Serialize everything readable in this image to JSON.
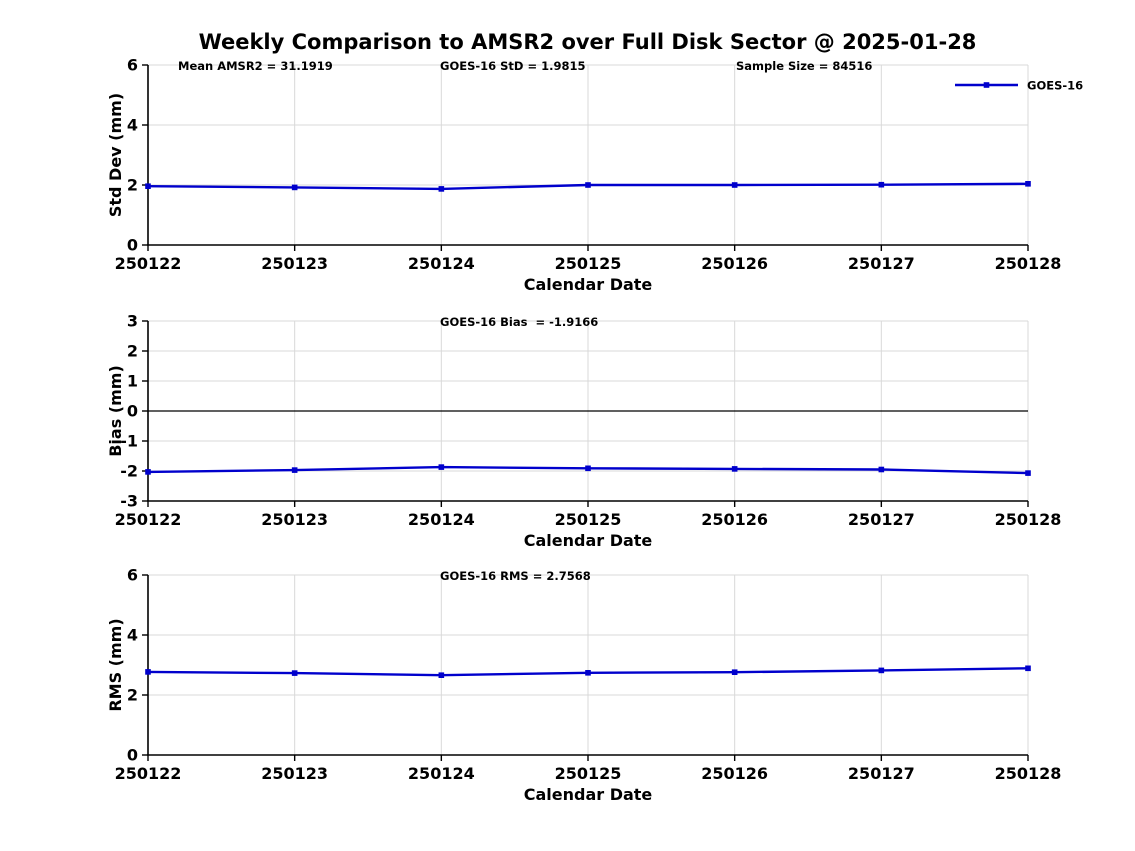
{
  "title": "Weekly Comparison to AMSR2 over Full Disk Sector @ 2025-01-28",
  "colors": {
    "series": "#0000CC",
    "grid": "#D9D9D9",
    "axis": "#000000",
    "zero_line": "#000000",
    "text": "#000000"
  },
  "legend": {
    "label": "GOES-16",
    "position": "northeast-outside"
  },
  "chart_data": [
    {
      "type": "line",
      "name": "stddev",
      "title": "",
      "xlabel": "Calendar Date",
      "ylabel": "Std Dev (mm)",
      "ylim": [
        0,
        6
      ],
      "yticks": [
        0,
        2,
        4,
        6
      ],
      "grid": "on",
      "categories": [
        "250122",
        "250123",
        "250124",
        "250125",
        "250126",
        "250127",
        "250128"
      ],
      "series": [
        {
          "name": "GOES-16",
          "color": "#0000CC",
          "marker": "square",
          "values": [
            1.96,
            1.92,
            1.87,
            2.0,
            2.0,
            2.01,
            2.04
          ]
        }
      ],
      "annotations": [
        {
          "text": "Mean AMSR2 = 31.1919",
          "x": 178
        },
        {
          "text": "GOES-16 StD = 1.9815",
          "x": 440
        },
        {
          "text": "Sample Size = 84516",
          "x": 736
        }
      ],
      "show_legend": true,
      "zero_line": false
    },
    {
      "type": "line",
      "name": "bias",
      "title": "",
      "xlabel": "Calendar Date",
      "ylabel": "Bias (mm)",
      "ylim": [
        -3,
        3
      ],
      "yticks": [
        3,
        2,
        1,
        0,
        -1,
        -2,
        -3
      ],
      "grid": "on",
      "categories": [
        "250122",
        "250123",
        "250124",
        "250125",
        "250126",
        "250127",
        "250128"
      ],
      "series": [
        {
          "name": "GOES-16",
          "color": "#0000CC",
          "marker": "square",
          "values": [
            -2.03,
            -1.97,
            -1.87,
            -1.91,
            -1.93,
            -1.95,
            -2.07
          ]
        }
      ],
      "annotations": [
        {
          "text": "GOES-16 Bias  = -1.9166",
          "x": 440
        }
      ],
      "show_legend": false,
      "zero_line": true
    },
    {
      "type": "line",
      "name": "rms",
      "title": "",
      "xlabel": "Calendar Date",
      "ylabel": "RMS (mm)",
      "ylim": [
        0,
        6
      ],
      "yticks": [
        0,
        2,
        4,
        6
      ],
      "grid": "on",
      "categories": [
        "250122",
        "250123",
        "250124",
        "250125",
        "250126",
        "250127",
        "250128"
      ],
      "series": [
        {
          "name": "GOES-16",
          "color": "#0000CC",
          "marker": "square",
          "values": [
            2.77,
            2.73,
            2.66,
            2.74,
            2.76,
            2.82,
            2.89
          ]
        }
      ],
      "annotations": [
        {
          "text": "GOES-16 RMS = 2.7568",
          "x": 440
        }
      ],
      "show_legend": false,
      "zero_line": false
    }
  ]
}
